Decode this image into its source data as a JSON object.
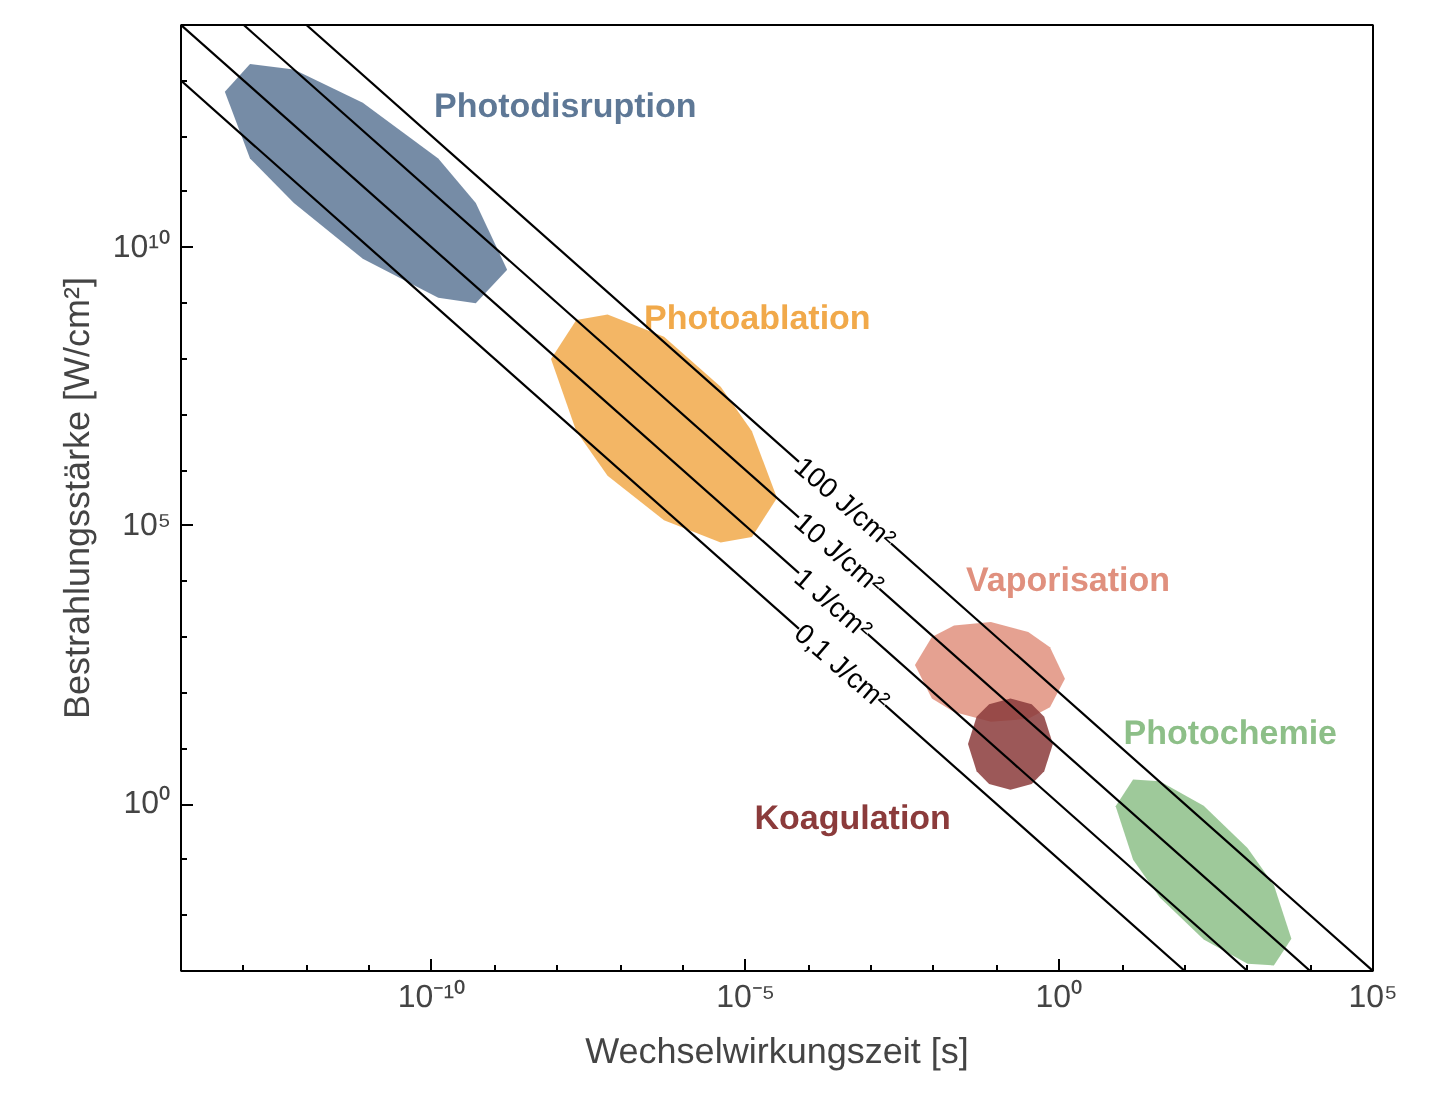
{
  "chart_data": {
    "type": "line",
    "xlabel": "Wechselwirkungszeit [s]",
    "ylabel": "Bestrahlungsstärke [W/cm²]",
    "log": "xy",
    "xlim": [
      1e-14,
      100000.0
    ],
    "ylim": [
      0.001,
      100000000000000.0
    ],
    "xticks": [
      {
        "value": 1e-10,
        "label": "10⁻¹⁰"
      },
      {
        "value": 1e-05,
        "label": "10⁻⁵"
      },
      {
        "value": 1,
        "label": "10⁰"
      },
      {
        "value": 100000.0,
        "label": "10⁵"
      }
    ],
    "yticks": [
      {
        "value": 1,
        "label": "10⁰"
      },
      {
        "value": 100000.0,
        "label": "10⁵"
      },
      {
        "value": 10000000000.0,
        "label": "10¹⁰"
      }
    ],
    "grid": false,
    "series": [
      {
        "name": "Photodisruption",
        "type": "area",
        "color": "#5e7896",
        "x": [
          5e-14,
          1.26e-13,
          6.3e-13,
          7.9e-12,
          1.26e-10,
          5e-10,
          1.58e-09,
          5e-10,
          1.26e-10,
          7.9e-12,
          6.3e-13,
          1.26e-13
        ],
        "values": [
          6300000000000.0,
          20000000000000.0,
          15800000000000.0,
          4000000000000.0,
          400000000000.0,
          63000000000.0,
          4000000000.0,
          1000000000.0,
          1260000000.0,
          6300000000.0,
          63000000000.0,
          400000000000.0
        ]
      },
      {
        "name": "Photoablation",
        "type": "area",
        "color": "#f1a94a",
        "x": [
          7.9e-09,
          2e-08,
          6.3e-08,
          5e-07,
          4e-06,
          1.26e-05,
          3.16e-05,
          1.26e-05,
          4e-06,
          5e-07,
          6.3e-08,
          2e-08
        ],
        "values": [
          100000000.0,
          500000000.0,
          630000000.0,
          250000000.0,
          31600000.0,
          5000000.0,
          316000.0,
          63000.0,
          50000.0,
          126000.0,
          790000.0,
          5000000.0
        ]
      },
      {
        "name": "Vaporisation",
        "type": "area",
        "color": "#e0907e",
        "x": [
          0.005,
          0.0093,
          0.021,
          0.081,
          0.32,
          0.71,
          1.23,
          0.71,
          0.32,
          0.081,
          0.021,
          0.0093
        ],
        "values": [
          316,
          1000,
          1620,
          1860,
          1230,
          660,
          178,
          55,
          34,
          30,
          45,
          79
        ]
      },
      {
        "name": "Koagulation",
        "type": "area",
        "color": "#8b3b3b",
        "x": [
          0.035,
          0.048,
          0.076,
          0.166,
          0.363,
          0.575,
          0.79,
          0.575,
          0.363,
          0.166,
          0.076,
          0.048
        ],
        "values": [
          12,
          37,
          62,
          79,
          62,
          37,
          12,
          3.9,
          2.3,
          1.8,
          2.3,
          3.9
        ]
      },
      {
        "name": "Photochemie",
        "type": "area",
        "color": "#8dbf88",
        "x": [
          7.9,
          15,
          40,
          200,
          1000,
          2630,
          5000,
          2630,
          1000,
          200,
          40,
          15
        ],
        "values": [
          0.91,
          2.75,
          2.57,
          0.93,
          0.162,
          0.035,
          0.0038,
          0.00126,
          0.00135,
          0.0037,
          0.021,
          0.1
        ]
      },
      {
        "name": "100 J/cm²",
        "color": "#000000",
        "x": [
          1e-12,
          100000.0
        ],
        "values": [
          100000000000000.0,
          0.001
        ]
      },
      {
        "name": "10 J/cm²",
        "color": "#000000",
        "x": [
          1e-13,
          10000.0
        ],
        "values": [
          100000000000000.0,
          0.001
        ]
      },
      {
        "name": "1 J/cm²",
        "color": "#000000",
        "x": [
          1e-14,
          1000.0
        ],
        "values": [
          100000000000000.0,
          0.001
        ]
      },
      {
        "name": "0,1 J/cm²",
        "color": "#000000",
        "x": [
          1e-14,
          100.0
        ],
        "values": [
          10000000000000.0,
          0.001
        ]
      }
    ]
  }
}
